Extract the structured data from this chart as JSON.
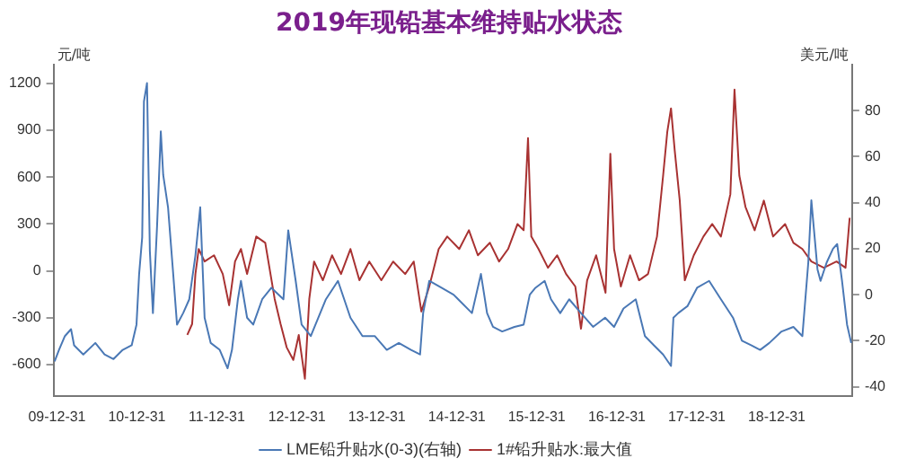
{
  "chart_data": {
    "type": "line",
    "title": "2019年现铅基本维持贴水状态",
    "ylabel": "元/吨",
    "y2label": "美元/吨",
    "xlim": [
      "2009-12-15",
      "2019-12-10"
    ],
    "xticks": [
      {
        "value": "2009-12-31",
        "label": "09-12-31"
      },
      {
        "value": "2010-12-31",
        "label": "10-12-31"
      },
      {
        "value": "2011-12-31",
        "label": "11-12-31"
      },
      {
        "value": "2012-12-31",
        "label": "12-12-31"
      },
      {
        "value": "2013-12-31",
        "label": "13-12-31"
      },
      {
        "value": "2014-12-31",
        "label": "14-12-31"
      },
      {
        "value": "2015-12-31",
        "label": "15-12-31"
      },
      {
        "value": "2016-12-31",
        "label": "16-12-31"
      },
      {
        "value": "2017-12-31",
        "label": "17-12-31"
      },
      {
        "value": "2018-12-31",
        "label": "18-12-31"
      }
    ],
    "ylim": [
      -800,
      1320
    ],
    "yticks": [
      -600,
      -300,
      0,
      300,
      600,
      900,
      1200
    ],
    "y2lim": [
      -44,
      100
    ],
    "y2ticks": [
      -40,
      -20,
      0,
      20,
      40,
      60,
      80
    ],
    "legend": "bottom",
    "grid": false,
    "marker": "none",
    "line_style": "solid",
    "series": [
      {
        "name": "LME铅升贴水(0-3)(右轴)",
        "color": "#4a78b5",
        "axis": "y2",
        "x": [
          "2009-12-20",
          "2010-01-09",
          "2010-02-05",
          "2010-03-05",
          "2010-03-19",
          "2010-04-30",
          "2010-06-24",
          "2010-08-05",
          "2010-09-15",
          "2010-10-27",
          "2010-12-07",
          "2010-12-29",
          "2011-01-10",
          "2011-01-24",
          "2011-02-01",
          "2011-02-15",
          "2011-02-28",
          "2011-03-14",
          "2011-04-02",
          "2011-04-19",
          "2011-04-30",
          "2011-05-22",
          "2011-06-13",
          "2011-07-02",
          "2011-07-30",
          "2011-08-27",
          "2011-09-24",
          "2011-10-16",
          "2011-11-05",
          "2011-12-03",
          "2012-01-13",
          "2012-02-18",
          "2012-03-09",
          "2012-04-05",
          "2012-04-19",
          "2012-05-17",
          "2012-06-14",
          "2012-07-25",
          "2012-09-05",
          "2012-10-30",
          "2012-11-21",
          "2012-12-25",
          "2013-01-21",
          "2013-03-04",
          "2013-05-12",
          "2013-07-06",
          "2013-09-01",
          "2013-10-26",
          "2013-12-21",
          "2014-02-14",
          "2014-04-10",
          "2014-06-05",
          "2014-07-16",
          "2014-07-30",
          "2014-08-27",
          "2014-10-22",
          "2014-12-16",
          "2015-03-10",
          "2015-04-20",
          "2015-05-18",
          "2015-06-14",
          "2015-07-26",
          "2015-09-20",
          "2015-11-01",
          "2015-11-29",
          "2015-12-25",
          "2016-02-05",
          "2016-03-05",
          "2016-04-16",
          "2016-05-27",
          "2016-07-20",
          "2016-09-13",
          "2016-11-07",
          "2016-12-18",
          "2017-01-30",
          "2017-03-27",
          "2017-05-08",
          "2017-06-18",
          "2017-07-30",
          "2017-09-04",
          "2017-09-15",
          "2017-10-07",
          "2017-11-18",
          "2018-01-01",
          "2018-02-25",
          "2018-04-20",
          "2018-06-14",
          "2018-07-25",
          "2018-09-05",
          "2018-10-16",
          "2018-11-27",
          "2019-01-22",
          "2019-03-17",
          "2019-04-27",
          "2019-05-24",
          "2019-06-07",
          "2019-07-05",
          "2019-07-19",
          "2019-08-16",
          "2019-09-14",
          "2019-10-03",
          "2019-10-25",
          "2019-11-17",
          "2019-12-06"
        ],
        "values": [
          -29,
          -24,
          -18,
          -15,
          -22,
          -26,
          -21,
          -26,
          -28,
          -24,
          -22,
          -13,
          9,
          25,
          84,
          92,
          19,
          -8,
          30,
          71,
          52,
          38,
          11,
          -13,
          -8,
          -2,
          17,
          38,
          -10,
          -21,
          -24,
          -32,
          -24,
          -2,
          6,
          -10,
          -13,
          -2,
          3,
          -2,
          28,
          6,
          -13,
          -18,
          -2,
          6,
          -10,
          -18,
          -18,
          -24,
          -21,
          -24,
          -26,
          -8,
          6,
          3,
          0,
          -8,
          9,
          -8,
          -14,
          -16,
          -14,
          -13,
          0,
          3,
          6,
          -2,
          -8,
          -2,
          -8,
          -14,
          -10,
          -14,
          -6,
          -2,
          -18,
          -22,
          -26,
          -31,
          -10,
          -8,
          -5,
          3,
          6,
          -2,
          -10,
          -20,
          -22,
          -24,
          -21,
          -16,
          -14,
          -18,
          14,
          41,
          11,
          6,
          14,
          20,
          22,
          6,
          -13,
          -21
        ]
      },
      {
        "name": "1#铅升贴水:最大值",
        "color": "#a83232",
        "axis": "y",
        "x": [
          "2011-08-18",
          "2011-09-09",
          "2011-09-24",
          "2011-10-09",
          "2011-11-05",
          "2011-12-18",
          "2012-01-27",
          "2012-02-25",
          "2012-03-23",
          "2012-04-19",
          "2012-05-17",
          "2012-06-28",
          "2012-08-08",
          "2012-09-20",
          "2012-10-17",
          "2012-11-14",
          "2012-12-14",
          "2013-01-08",
          "2013-02-05",
          "2013-02-25",
          "2013-03-19",
          "2013-04-28",
          "2013-06-09",
          "2013-07-20",
          "2013-09-01",
          "2013-10-12",
          "2013-11-26",
          "2014-01-20",
          "2014-03-15",
          "2014-05-09",
          "2014-06-17",
          "2014-07-22",
          "2014-08-27",
          "2014-10-09",
          "2014-11-17",
          "2015-01-11",
          "2015-02-24",
          "2015-04-06",
          "2015-05-31",
          "2015-07-12",
          "2015-08-22",
          "2015-10-04",
          "2015-11-01",
          "2015-11-21",
          "2015-12-06",
          "2016-01-08",
          "2016-02-20",
          "2016-04-02",
          "2016-05-13",
          "2016-06-24",
          "2016-07-20",
          "2016-08-17",
          "2016-09-27",
          "2016-11-09",
          "2016-12-01",
          "2016-12-18",
          "2017-01-18",
          "2017-03-01",
          "2017-04-11",
          "2017-05-22",
          "2017-07-02",
          "2017-07-30",
          "2017-08-18",
          "2017-09-04",
          "2017-09-21",
          "2017-10-14",
          "2017-11-06",
          "2017-12-17",
          "2018-01-30",
          "2018-03-11",
          "2018-04-20",
          "2018-06-02",
          "2018-06-21",
          "2018-07-13",
          "2018-08-10",
          "2018-09-21",
          "2018-11-02",
          "2018-12-14",
          "2019-02-07",
          "2019-03-17",
          "2019-04-27",
          "2019-06-07",
          "2019-08-03",
          "2019-09-30",
          "2019-11-10",
          "2019-11-29"
        ],
        "values": [
          -410,
          -340,
          -20,
          140,
          60,
          100,
          -20,
          -220,
          60,
          140,
          -20,
          220,
          180,
          -180,
          -340,
          -490,
          -570,
          -410,
          -690,
          -180,
          60,
          -60,
          100,
          -20,
          140,
          -60,
          60,
          -60,
          60,
          -20,
          60,
          -260,
          -100,
          140,
          220,
          140,
          260,
          100,
          180,
          60,
          140,
          300,
          260,
          850,
          220,
          140,
          20,
          100,
          -20,
          -100,
          -370,
          -60,
          100,
          -140,
          750,
          140,
          -100,
          100,
          -60,
          -20,
          220,
          610,
          890,
          1040,
          770,
          450,
          -60,
          100,
          220,
          300,
          220,
          490,
          1160,
          610,
          410,
          260,
          450,
          220,
          300,
          180,
          140,
          60,
          20,
          60,
          20,
          340
        ]
      }
    ]
  }
}
